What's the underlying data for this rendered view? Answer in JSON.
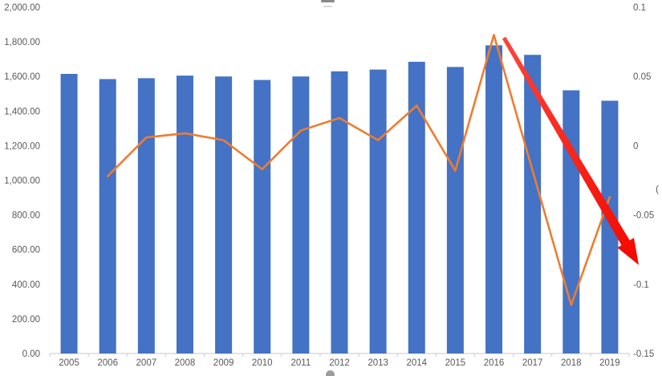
{
  "fragments": {
    "left_axis_title_fragment": ")",
    "right_axis_title_fragment": "("
  },
  "chart_data": {
    "type": "combo-bar-line",
    "title": "",
    "categories": [
      "2005",
      "2006",
      "2007",
      "2008",
      "2009",
      "2010",
      "2011",
      "2012",
      "2013",
      "2014",
      "2015",
      "2016",
      "2017",
      "2018",
      "2019"
    ],
    "series": [
      {
        "name": "bar-series",
        "type": "bar",
        "axis": "left",
        "color": "#4472C4",
        "values": [
          1615,
          1585,
          1590,
          1605,
          1600,
          1580,
          1600,
          1630,
          1640,
          1685,
          1655,
          1780,
          1725,
          1520,
          1460
        ]
      },
      {
        "name": "line-series",
        "type": "line",
        "axis": "right",
        "color": "#ED7D31",
        "values": [
          null,
          -0.022,
          0.006,
          0.009,
          0.004,
          -0.017,
          0.011,
          0.02,
          0.004,
          0.029,
          -0.018,
          0.08,
          -0.018,
          -0.115,
          -0.037
        ]
      }
    ],
    "left_axis": {
      "min": 0,
      "max": 2000,
      "tick_step": 200,
      "tick_labels_top_to_bottom": [
        "2,000.00",
        "1,800.00",
        "1,600.00",
        "1,400.00",
        "1,200.00",
        "1,000.00",
        "800.00",
        "600.00",
        "400.00",
        "200.00",
        "0.00"
      ]
    },
    "right_axis": {
      "min": -0.15,
      "max": 0.1,
      "tick_step": 0.05,
      "tick_labels_top_to_bottom": [
        "0.1",
        "0.05",
        "0",
        "-0.05",
        "-0.1",
        "-0.15"
      ]
    },
    "x_axis": {
      "line_color": "#C9C9C9",
      "tick_color": "#C9C9C9"
    },
    "gridlines": false,
    "legend": "none",
    "annotation": {
      "type": "arrow",
      "color_start": "#FF4438",
      "color_end": "#F20800",
      "from": {
        "x_index": 11.26,
        "value": 0.078
      },
      "to": {
        "x_index": 14.75,
        "value": -0.086
      },
      "axis": "right"
    }
  }
}
